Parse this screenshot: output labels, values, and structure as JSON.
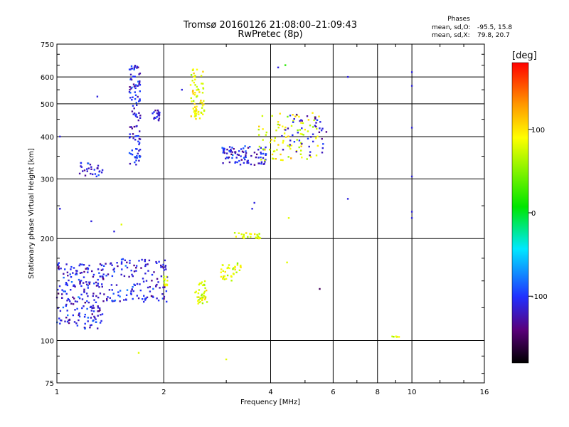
{
  "header": {
    "title": "Tromsø 20160126 21:08:00–21:09:43",
    "subtitle": "RwPretec (8p)"
  },
  "stats": {
    "heading": "Phases",
    "o_label": "mean, sd,O:",
    "o_values": "-95.5, 15.8",
    "x_label": "mean, sd,X:",
    "x_values": "79.8, 20.7"
  },
  "colorbar": {
    "label": "[deg]",
    "ticks": [
      {
        "value": 100,
        "label": "100"
      },
      {
        "value": 0,
        "label": "0"
      },
      {
        "value": -100,
        "label": "-100"
      }
    ],
    "range": [
      -180,
      180
    ]
  },
  "chart_data": {
    "type": "scatter",
    "xlabel": "Frequency [MHz]",
    "ylabel": "Stationary phase Virtual Height [km]",
    "x_scale": "log",
    "y_scale": "log",
    "xlim": [
      1,
      16
    ],
    "ylim": [
      75,
      750
    ],
    "x_ticks": [
      1,
      2,
      4,
      6,
      8,
      10,
      16
    ],
    "x_tick_labels": [
      "1",
      "2",
      "4",
      "6",
      "8",
      "10",
      "16"
    ],
    "y_ticks": [
      75,
      100,
      200,
      300,
      400,
      500,
      600,
      750
    ],
    "y_tick_labels": [
      "75",
      "100",
      "200",
      "300",
      "400",
      "500",
      "600",
      "750"
    ],
    "grid": true,
    "color_by": "phase [deg]",
    "clusters": [
      {
        "f_range": [
          1.0,
          1.35
        ],
        "h_range": [
          108,
          170
        ],
        "phase": -110,
        "count": 200
      },
      {
        "f_range": [
          1.35,
          2.05
        ],
        "h_range": [
          130,
          175
        ],
        "phase": -110,
        "count": 140
      },
      {
        "f_range": [
          2.0,
          2.05
        ],
        "h_range": [
          145,
          155
        ],
        "phase": 80,
        "count": 12
      },
      {
        "f_range": [
          2.45,
          2.65
        ],
        "h_range": [
          128,
          150
        ],
        "phase": 80,
        "count": 40
      },
      {
        "f_range": [
          2.9,
          3.3
        ],
        "h_range": [
          150,
          170
        ],
        "phase": 80,
        "count": 35
      },
      {
        "f_range": [
          3.15,
          3.75
        ],
        "h_range": [
          200,
          208
        ],
        "phase": 80,
        "count": 25
      },
      {
        "f_range": [
          1.6,
          1.72
        ],
        "h_range": [
          330,
          650
        ],
        "phase": -112,
        "count": 110
      },
      {
        "f_range": [
          1.15,
          1.35
        ],
        "h_range": [
          305,
          335
        ],
        "phase": -108,
        "count": 30
      },
      {
        "f_range": [
          1.85,
          1.95
        ],
        "h_range": [
          445,
          480
        ],
        "phase": -110,
        "count": 20
      },
      {
        "f_range": [
          2.38,
          2.6
        ],
        "h_range": [
          445,
          640
        ],
        "phase": 85,
        "count": 70
      },
      {
        "f_range": [
          2.9,
          3.9
        ],
        "h_range": [
          330,
          375
        ],
        "phase": -110,
        "count": 90
      },
      {
        "f_range": [
          3.7,
          5.5
        ],
        "h_range": [
          340,
          470
        ],
        "phase": 85,
        "count": 90
      },
      {
        "f_range": [
          4.3,
          5.8
        ],
        "h_range": [
          350,
          470
        ],
        "phase": -110,
        "count": 45
      },
      {
        "f_range": [
          8.8,
          9.2
        ],
        "h_range": [
          102,
          103
        ],
        "phase": 80,
        "count": 6
      }
    ],
    "points": [
      {
        "f": 1.02,
        "h": 400,
        "phase": -110
      },
      {
        "f": 1.02,
        "h": 245,
        "phase": -110
      },
      {
        "f": 1.3,
        "h": 525,
        "phase": -110
      },
      {
        "f": 1.25,
        "h": 225,
        "phase": -110
      },
      {
        "f": 1.45,
        "h": 210,
        "phase": -110
      },
      {
        "f": 1.52,
        "h": 220,
        "phase": 80
      },
      {
        "f": 1.7,
        "h": 92,
        "phase": 80
      },
      {
        "f": 2.25,
        "h": 550,
        "phase": -110
      },
      {
        "f": 3.0,
        "h": 88,
        "phase": 80
      },
      {
        "f": 3.6,
        "h": 255,
        "phase": -110
      },
      {
        "f": 3.55,
        "h": 245,
        "phase": -110
      },
      {
        "f": 4.2,
        "h": 640,
        "phase": -110
      },
      {
        "f": 4.4,
        "h": 650,
        "phase": 20
      },
      {
        "f": 4.5,
        "h": 230,
        "phase": 80
      },
      {
        "f": 4.45,
        "h": 170,
        "phase": 80
      },
      {
        "f": 5.5,
        "h": 142,
        "phase": -150
      },
      {
        "f": 6.6,
        "h": 600,
        "phase": -110
      },
      {
        "f": 6.6,
        "h": 262,
        "phase": -110
      },
      {
        "f": 10.0,
        "h": 620,
        "phase": -110
      },
      {
        "f": 10.0,
        "h": 565,
        "phase": -110
      },
      {
        "f": 10.0,
        "h": 425,
        "phase": -110
      },
      {
        "f": 10.0,
        "h": 305,
        "phase": -110
      },
      {
        "f": 10.0,
        "h": 240,
        "phase": -110
      },
      {
        "f": 10.0,
        "h": 230,
        "phase": -110
      }
    ]
  }
}
